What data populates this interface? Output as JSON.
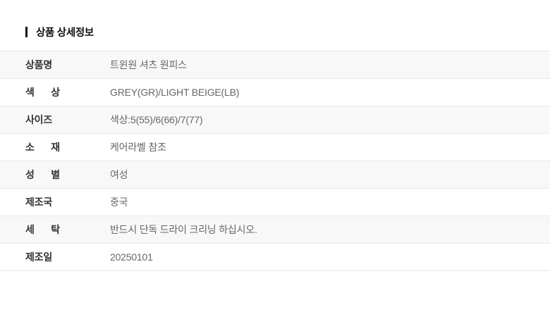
{
  "header": {
    "title": "상품 상세정보"
  },
  "table": {
    "rows": [
      {
        "label": "상품명",
        "value": "트윈원 셔츠 원피스"
      },
      {
        "label": "색 상",
        "value": "GREY(GR)/LIGHT BEIGE(LB)"
      },
      {
        "label": "사이즈",
        "value": "색상:5(55)/6(66)/7(77)"
      },
      {
        "label": "소 재",
        "value": "케어라벨 참조"
      },
      {
        "label": "성 별",
        "value": "여성"
      },
      {
        "label": "제조국",
        "value": "중국"
      },
      {
        "label": "세 탁",
        "value": "반드시 단독 드라이 크리닝 하십시오."
      },
      {
        "label": "제조일",
        "value": "20250101"
      }
    ]
  },
  "colors": {
    "row_alt_bg": "#f8f8f8",
    "border": "#e7e7e7",
    "title_text": "#111111",
    "label_text": "#333333",
    "value_text": "#666666"
  }
}
